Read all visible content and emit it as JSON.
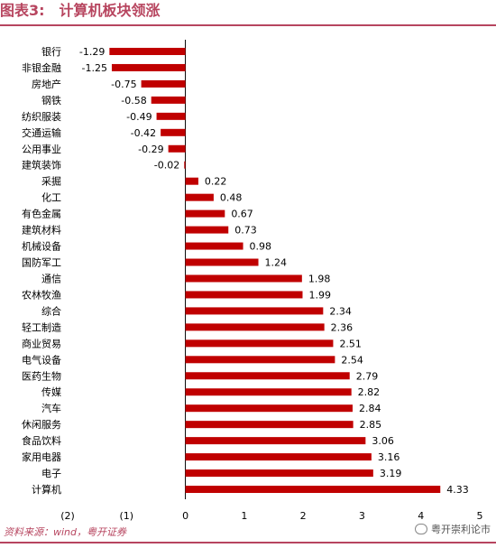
{
  "header": {
    "figure_no": "图表3:",
    "title": "计算机板块领涨"
  },
  "source": "资料来源：wind，粤开证券",
  "watermark": "粤开崇利论市",
  "colors": {
    "bar": "#c00000",
    "title": "#b7455f",
    "negative_tick": "#c0504d"
  },
  "chart_data": {
    "type": "bar",
    "orientation": "horizontal",
    "categories": [
      "银行",
      "非银金融",
      "房地产",
      "钢铁",
      "纺织服装",
      "交通运输",
      "公用事业",
      "建筑装饰",
      "采掘",
      "化工",
      "有色金属",
      "建筑材料",
      "机械设备",
      "国防军工",
      "通信",
      "农林牧渔",
      "综合",
      "轻工制造",
      "商业贸易",
      "电气设备",
      "医药生物",
      "传媒",
      "汽车",
      "休闲服务",
      "食品饮料",
      "家用电器",
      "电子",
      "计算机"
    ],
    "values": [
      -1.29,
      -1.25,
      -0.75,
      -0.58,
      -0.49,
      -0.42,
      -0.29,
      -0.02,
      0.22,
      0.48,
      0.67,
      0.73,
      0.98,
      1.24,
      1.98,
      1.99,
      2.34,
      2.36,
      2.51,
      2.54,
      2.79,
      2.82,
      2.84,
      2.85,
      3.06,
      3.16,
      3.19,
      4.33
    ],
    "value_labels": [
      "-1.29",
      "-1.25",
      "-0.75",
      "-0.58",
      "-0.49",
      "-0.42",
      "-0.29",
      "-0.02",
      "0.22",
      "0.48",
      "0.67",
      "0.73",
      "0.98",
      "1.24",
      "1.98",
      "1.99",
      "2.34",
      "2.36",
      "2.51",
      "2.54",
      "2.79",
      "2.82",
      "2.84",
      "2.85",
      "3.06",
      "3.16",
      "3.19",
      "4.33"
    ],
    "x_ticks": [
      -2,
      -1,
      0,
      1,
      2,
      3,
      4,
      5
    ],
    "x_tick_labels": [
      "(2)",
      "(1)",
      "0",
      "1",
      "2",
      "3",
      "4",
      "5"
    ],
    "xlim": [
      -2,
      5
    ],
    "grid": false,
    "legend": "none",
    "title": "计算机板块领涨",
    "xlabel": "",
    "ylabel": ""
  }
}
